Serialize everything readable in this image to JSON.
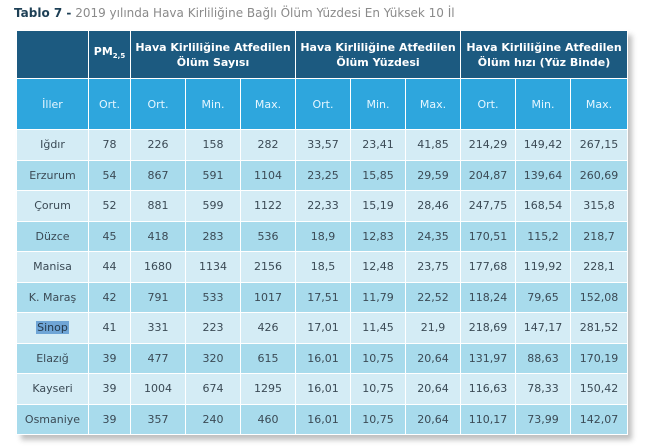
{
  "title": {
    "label": "Tablo 7 -",
    "text": "2019 yılında Hava Kirliliğine Bağlı Ölüm Yüzdesi En Yüksek 10 İl"
  },
  "header": {
    "pm_main": "PM",
    "pm_sub": "2,5",
    "group1": "Hava Kirliliğine Atfedilen Ölüm Sayısı",
    "group2": "Hava Kirliliğine Atfedilen Ölüm Yüzdesi",
    "group3": "Hava Kirliliğine Atfedilen Ölüm hızı (Yüz Binde)",
    "sub": [
      "İller",
      "Ort.",
      "Ort.",
      "Min.",
      "Max.",
      "Ort.",
      "Min.",
      "Max.",
      "Ort.",
      "Min.",
      "Max."
    ]
  },
  "rows": [
    [
      "Iğdır",
      "78",
      "226",
      "158",
      "282",
      "33,57",
      "23,41",
      "41,85",
      "214,29",
      "149,42",
      "267,15"
    ],
    [
      "Erzurum",
      "54",
      "867",
      "591",
      "1104",
      "23,25",
      "15,85",
      "29,59",
      "204,87",
      "139,64",
      "260,69"
    ],
    [
      "Çorum",
      "52",
      "881",
      "599",
      "1122",
      "22,33",
      "15,19",
      "28,46",
      "247,75",
      "168,54",
      "315,8"
    ],
    [
      "Düzce",
      "45",
      "418",
      "283",
      "536",
      "18,9",
      "12,83",
      "24,35",
      "170,51",
      "115,2",
      "218,7"
    ],
    [
      "Manisa",
      "44",
      "1680",
      "1134",
      "2156",
      "18,5",
      "12,48",
      "23,75",
      "177,68",
      "119,92",
      "228,1"
    ],
    [
      "K. Maraş",
      "42",
      "791",
      "533",
      "1017",
      "17,51",
      "11,79",
      "22,52",
      "118,24",
      "79,65",
      "152,08"
    ],
    [
      "Sinop",
      "41",
      "331",
      "223",
      "426",
      "17,01",
      "11,45",
      "21,9",
      "218,69",
      "147,17",
      "281,52"
    ],
    [
      "Elazığ",
      "39",
      "477",
      "320",
      "615",
      "16,01",
      "10,75",
      "20,64",
      "131,97",
      "88,63",
      "170,19"
    ],
    [
      "Kayseri",
      "39",
      "1004",
      "674",
      "1295",
      "16,01",
      "10,75",
      "20,64",
      "116,63",
      "78,33",
      "150,42"
    ],
    [
      "Osmaniye",
      "39",
      "357",
      "240",
      "460",
      "16,01",
      "10,75",
      "20,64",
      "110,17",
      "73,99",
      "142,07"
    ]
  ],
  "selected_text": "Sinop",
  "colors": {
    "header_dark": "#1c5a80",
    "header_light": "#2ea6dd",
    "row_light": "#d4ecf5",
    "row_dark": "#a8dbec"
  }
}
